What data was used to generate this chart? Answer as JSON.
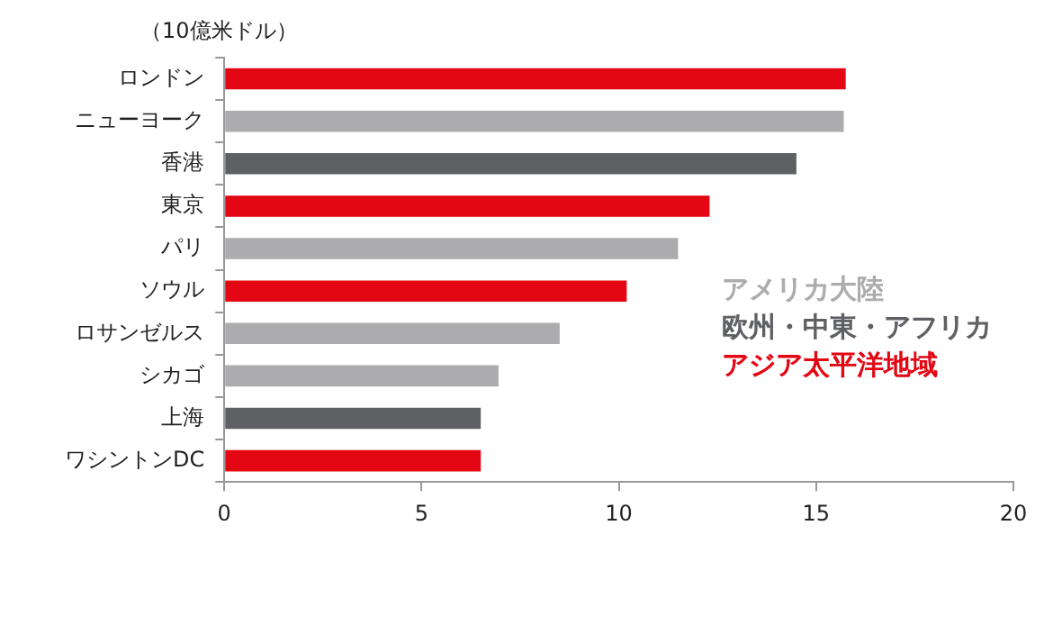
{
  "chart_data": {
    "type": "bar",
    "orientation": "horizontal",
    "xlabel": "（10億米ドル）",
    "categories": [
      "ロンドン",
      "ニューヨーク",
      "香港",
      "東京",
      "パリ",
      "ソウル",
      "ロサンゼルス",
      "シカゴ",
      "上海",
      "ワシントンDC"
    ],
    "series": [
      {
        "name": "アメリカ大陸",
        "color": "#acacae",
        "values": [
          null,
          15.7,
          null,
          null,
          11.5,
          null,
          8.5,
          6.95,
          null,
          null
        ]
      },
      {
        "name": "欧州・中東・アフリカ",
        "color": "#5f6064",
        "values": [
          null,
          null,
          14.5,
          null,
          null,
          null,
          null,
          null,
          6.5,
          null
        ]
      },
      {
        "name": "アジア太平洋地域",
        "color": "#e30613",
        "values": [
          15.75,
          null,
          null,
          12.3,
          null,
          10.2,
          null,
          null,
          null,
          6.5
        ]
      }
    ],
    "xlim": [
      0,
      20
    ],
    "xticks": [
      0,
      5,
      10,
      15,
      20
    ],
    "grid": false,
    "legend": "right"
  }
}
